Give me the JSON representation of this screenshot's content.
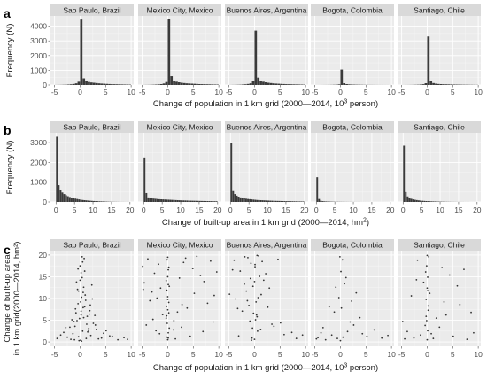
{
  "chart_data": [
    {
      "panel_label": "a",
      "type": "bar",
      "subtype": "histogram-facets",
      "xlabel_prefix": "Change of population in 1 km grid (2000—2014, 10",
      "xlabel_sup": "3",
      "xlabel_suffix": " person)",
      "ylabel": "Frequency (N)",
      "xlim": [
        -5.8,
        10.5
      ],
      "ylim": [
        0,
        4700
      ],
      "xticks": [
        -5,
        0,
        5,
        10
      ],
      "yticks": [
        0,
        1000,
        2000,
        3000,
        4000
      ],
      "bin_width": 0.5,
      "bin_starts": [
        -5.0,
        -4.5,
        -4.0,
        -3.5,
        -3.0,
        -2.5,
        -2.0,
        -1.5,
        -1.0,
        -0.5,
        0.0,
        0.5,
        1.0,
        1.5,
        2.0,
        2.5,
        3.0,
        3.5,
        4.0,
        4.5,
        5.0,
        5.5,
        6.0,
        6.5,
        7.0,
        7.5,
        8.0,
        8.5,
        9.0,
        9.5
      ],
      "series": [
        {
          "name": "Sao Paulo, Brazil",
          "values": [
            5,
            8,
            10,
            15,
            20,
            30,
            45,
            70,
            110,
            220,
            4450,
            450,
            260,
            200,
            170,
            150,
            130,
            110,
            95,
            85,
            75,
            65,
            55,
            50,
            45,
            40,
            35,
            30,
            28,
            25
          ]
        },
        {
          "name": "Mexico City, Mexico",
          "values": [
            5,
            8,
            10,
            15,
            20,
            28,
            40,
            60,
            100,
            200,
            4500,
            600,
            300,
            220,
            180,
            150,
            130,
            110,
            100,
            90,
            80,
            70,
            60,
            55,
            50,
            45,
            40,
            35,
            30,
            28
          ]
        },
        {
          "name": "Buenos Aires, Argentina",
          "values": [
            5,
            8,
            10,
            15,
            20,
            30,
            45,
            70,
            110,
            250,
            3700,
            500,
            280,
            220,
            180,
            150,
            130,
            110,
            95,
            85,
            75,
            65,
            55,
            50,
            45,
            40,
            35,
            30,
            28,
            25
          ]
        },
        {
          "name": "Bogota, Colombia",
          "values": [
            2,
            3,
            4,
            5,
            6,
            8,
            10,
            15,
            20,
            40,
            1050,
            120,
            60,
            40,
            30,
            25,
            20,
            18,
            15,
            12,
            10,
            9,
            8,
            7,
            6,
            5,
            5,
            4,
            4,
            3
          ]
        },
        {
          "name": "Santiago, Chile",
          "values": [
            3,
            5,
            6,
            8,
            10,
            15,
            20,
            30,
            50,
            120,
            3300,
            250,
            130,
            90,
            70,
            60,
            50,
            45,
            40,
            35,
            30,
            28,
            25,
            22,
            20,
            18,
            15,
            14,
            12,
            10
          ]
        }
      ]
    },
    {
      "panel_label": "b",
      "type": "bar",
      "subtype": "histogram-facets",
      "xlabel_prefix": "Change of built-up area in 1 km grid (2000—2014, hm",
      "xlabel_sup": "2",
      "xlabel_suffix": ")",
      "ylabel": "Frequency (N)",
      "xlim": [
        -1.5,
        21
      ],
      "ylim": [
        0,
        3500
      ],
      "xticks": [
        0,
        5,
        10,
        15,
        20
      ],
      "yticks": [
        0,
        1000,
        2000,
        3000
      ],
      "bin_width": 0.5,
      "bin_starts": [
        0.0,
        0.5,
        1.0,
        1.5,
        2.0,
        2.5,
        3.0,
        3.5,
        4.0,
        4.5,
        5.0,
        5.5,
        6.0,
        6.5,
        7.0,
        7.5,
        8.0,
        8.5,
        9.0,
        9.5,
        10.0,
        10.5,
        11.0,
        11.5,
        12.0,
        12.5,
        13.0,
        13.5,
        14.0,
        14.5,
        15.0,
        15.5,
        16.0,
        16.5,
        17.0,
        17.5,
        18.0,
        18.5,
        19.0,
        19.5
      ],
      "series": [
        {
          "name": "Sao Paulo, Brazil",
          "values": [
            3300,
            850,
            600,
            480,
            400,
            340,
            290,
            250,
            220,
            190,
            170,
            150,
            130,
            115,
            100,
            90,
            80,
            70,
            62,
            55,
            48,
            42,
            37,
            32,
            28,
            24,
            20,
            17,
            14,
            12,
            10,
            8,
            7,
            6,
            5,
            4,
            4,
            3,
            3,
            2
          ]
        },
        {
          "name": "Mexico City, Mexico",
          "values": [
            2250,
            450,
            230,
            200,
            180,
            170,
            160,
            150,
            140,
            135,
            130,
            125,
            120,
            115,
            110,
            105,
            100,
            95,
            90,
            85,
            82,
            78,
            75,
            72,
            68,
            65,
            62,
            60,
            58,
            55,
            52,
            50,
            48,
            46,
            44,
            42,
            40,
            38,
            36,
            35
          ]
        },
        {
          "name": "Buenos Aires, Argentina",
          "values": [
            3000,
            550,
            400,
            320,
            270,
            230,
            200,
            180,
            165,
            150,
            140,
            130,
            120,
            110,
            100,
            95,
            90,
            85,
            80,
            75,
            70,
            65,
            62,
            58,
            55,
            52,
            50,
            47,
            45,
            42,
            40,
            38,
            36,
            34,
            32,
            30,
            28,
            26,
            25,
            24
          ]
        },
        {
          "name": "Bogota, Colombia",
          "values": [
            1250,
            150,
            60,
            40,
            30,
            25,
            20,
            18,
            15,
            13,
            12,
            10,
            9,
            8,
            7,
            6,
            6,
            5,
            5,
            4,
            4,
            3,
            3,
            3,
            2,
            2,
            2,
            2,
            2,
            1,
            1,
            1,
            1,
            1,
            1,
            1,
            1,
            1,
            1,
            1
          ]
        },
        {
          "name": "Santiago, Chile",
          "values": [
            2850,
            500,
            280,
            200,
            160,
            130,
            110,
            95,
            80,
            70,
            60,
            52,
            45,
            40,
            35,
            30,
            27,
            24,
            21,
            18,
            16,
            14,
            12,
            10,
            9,
            8,
            7,
            6,
            5,
            4,
            4,
            3,
            3,
            2,
            2,
            2,
            1,
            1,
            1,
            1
          ]
        }
      ]
    },
    {
      "panel_label": "c",
      "type": "scatter",
      "xlabel_prefix": "Change of population in 1 km grid (2000—2014, 10",
      "xlabel_sup": "3",
      "xlabel_suffix": " person)",
      "ylabel_line1": "Change of built-up area",
      "ylabel_line2": "in 1 km grid(2000—2014, hm²)",
      "xlim": [
        -5.8,
        10.5
      ],
      "ylim": [
        -1,
        21
      ],
      "xticks": [
        -5,
        0,
        5,
        10
      ],
      "yticks": [
        0,
        5,
        10,
        15,
        20
      ],
      "series": [
        {
          "name": "Sao Paulo, Brazil",
          "x": [
            0.1,
            -0.3,
            0.5,
            1.2,
            -1.0,
            0.2,
            2.1,
            -0.6,
            0.9,
            1.6,
            -1.8,
            0.3,
            3.0,
            -2.5,
            0.7,
            -0.1,
            1.9,
            4.2,
            -3.2,
            0.4,
            1.1,
            -0.8,
            2.6,
            0.0,
            -1.4,
            5.1,
            0.6,
            -0.4,
            1.4,
            3.6,
            -2.0,
            0.8,
            2.3,
            -0.9,
            6.3,
            0.2,
            -0.2,
            1.0,
            -1.2,
            2.9,
            0.5,
            7.4,
            -3.8,
            1.7,
            0.1,
            -0.5,
            4.6,
            0.9,
            -1.6,
            2.0,
            0.3,
            8.6,
            -0.7,
            1.3,
            -4.5,
            0.6,
            3.2,
            -0.3,
            1.8,
            0.4,
            -2.8,
            5.8,
            0.0,
            2.4,
            -1.1,
            0.7,
            9.3,
            -0.4,
            1.5,
            0.2
          ],
          "y": [
            0.4,
            1.2,
            2.5,
            0.8,
            3.6,
            6.2,
            1.5,
            4.9,
            8.1,
            2.7,
            0.6,
            10.3,
            3.9,
            1.1,
            12.6,
            5.4,
            7.2,
            0.9,
            2.2,
            14.8,
            9.6,
            6.7,
            4.3,
            17.5,
            1.9,
            2.6,
            11.4,
            8.8,
            5.9,
            0.7,
            3.4,
            19.2,
            13.1,
            7.6,
            1.3,
            15.9,
            0.3,
            10.8,
            4.7,
            6.1,
            18.4,
            0.5,
            1.6,
            3.1,
            9.2,
            12.1,
            2.0,
            16.3,
            5.1,
            8.5,
            0.2,
            1.0,
            13.8,
            4.1,
            0.8,
            7.9,
            2.9,
            11.7,
            6.4,
            19.6,
            3.3,
            1.4,
            14.2,
            9.9,
            0.5,
            5.6,
            0.6,
            16.8,
            2.3,
            7.1
          ]
        },
        {
          "name": "Mexico City, Mexico",
          "x": [
            0.0,
            0.1,
            -0.1,
            0.2,
            -0.2,
            0.0,
            0.3,
            -0.3,
            0.1,
            -0.1,
            1.5,
            -1.6,
            2.7,
            -2.9,
            3.8,
            -3.5,
            5.2,
            -4.6,
            6.4,
            0.0,
            0.2,
            -0.2,
            1.1,
            -1.0,
            7.8,
            -4.9,
            2.3,
            -2.1,
            8.9,
            0.1,
            4.4,
            -3.9,
            0.0,
            9.6,
            -0.3,
            3.1,
            -1.4,
            6.9,
            0.2,
            -2.6,
            1.9,
            5.7,
            -0.1,
            -4.2,
            0.0,
            2.8,
            -3.1,
            7.1,
            0.3,
            9.1,
            -1.8,
            0.1,
            4.9,
            -0.2,
            3.5,
            -4.8,
            0.0,
            1.2,
            8.4,
            -2.3
          ],
          "y": [
            0.5,
            2.1,
            4.3,
            6.7,
            8.2,
            10.4,
            12.8,
            14.1,
            16.6,
            18.9,
            0.7,
            1.9,
            3.4,
            5.2,
            7.8,
            9.5,
            11.2,
            13.6,
            15.3,
            19.5,
            17.2,
            11.9,
            2.8,
            6.3,
            8.9,
            17.4,
            14.7,
            10.1,
            4.6,
            13.2,
            1.3,
            19.1,
            7.4,
            16.1,
            5.5,
            18.3,
            12.4,
            2.4,
            9.1,
            15.8,
            6.9,
            19.7,
            1.1,
            3.9,
            15.0,
            8.6,
            11.5,
            13.9,
            3.2,
            10.7,
            17.9,
            0.9,
            16.9,
            6.0,
            19.3,
            12.1,
            9.8,
            4.9,
            18.6,
            2.6
          ]
        },
        {
          "name": "Buenos Aires, Argentina",
          "x": [
            0.0,
            -0.4,
            0.5,
            -1.1,
            1.3,
            -2.0,
            2.2,
            -0.7,
            0.8,
            -3.1,
            3.4,
            -0.2,
            0.3,
            -1.6,
            1.8,
            -4.3,
            4.6,
            -0.5,
            0.6,
            -2.4,
            2.9,
            0.1,
            -0.9,
            5.8,
            -3.7,
            1.0,
            -1.3,
            0.4,
            7.3,
            -4.9,
            0.0,
            1.5,
            -0.6,
            2.6,
            -2.8,
            8.2,
            0.2,
            -1.9,
            3.8,
            -0.3,
            0.7,
            -3.3,
            9.4,
            0.1,
            -0.8,
            1.2,
            -4.0,
            5.1,
            -1.4,
            0.5
          ],
          "y": [
            0.6,
            3.2,
            5.8,
            8.4,
            10.9,
            13.3,
            15.7,
            18.1,
            19.8,
            1.4,
            4.1,
            6.6,
            9.2,
            11.7,
            14.2,
            16.6,
            19.0,
            0.9,
            2.5,
            7.1,
            12.4,
            17.3,
            4.8,
            1.7,
            9.9,
            15.1,
            19.4,
            6.2,
            2.2,
            11.0,
            13.9,
            18.5,
            0.4,
            8.0,
            16.3,
            0.8,
            5.1,
            19.6,
            3.6,
            12.8,
            10.2,
            7.7,
            1.6,
            17.8,
            14.6,
            2.9,
            18.8,
            4.4,
            9.5,
            19.9
          ]
        },
        {
          "name": "Bogota, Colombia",
          "x": [
            0.0,
            0.5,
            -0.6,
            1.4,
            -1.7,
            2.6,
            -2.9,
            3.8,
            -3.8,
            5.2,
            -4.7,
            0.2,
            -0.3,
            1.9,
            -1.2,
            6.6,
            0.8,
            -2.2,
            4.3,
            0.1,
            8.1,
            -0.9,
            2.2,
            -3.4,
            0.4,
            9.3,
            -0.1,
            1.1,
            -4.4,
            3.1
          ],
          "y": [
            0.3,
            1.1,
            0.8,
            2.4,
            1.6,
            3.9,
            0.5,
            5.6,
            2.1,
            1.3,
            0.7,
            7.8,
            10.2,
            4.6,
            6.9,
            2.8,
            13.4,
            8.1,
            1.9,
            16.2,
            0.9,
            12.6,
            9.4,
            3.3,
            18.9,
            1.5,
            19.6,
            14.8,
            1.0,
            11.3
          ]
        },
        {
          "name": "Santiago, Chile",
          "x": [
            0.0,
            0.1,
            -0.1,
            0.2,
            -0.2,
            0.0,
            0.1,
            -0.1,
            0.3,
            -0.3,
            1.2,
            -1.3,
            2.4,
            -2.6,
            3.7,
            -3.9,
            5.1,
            -4.8,
            6.4,
            7.8,
            9.1,
            0.5,
            -0.7,
            1.8,
            -1.9,
            4.4,
            -3.1,
            0.0,
            8.6,
            -4.4,
            2.9,
            0.2,
            -0.4,
            5.9,
            0.8,
            -2.1,
            3.3,
            -0.2,
            7.2,
            0.1
          ],
          "y": [
            0.5,
            2.6,
            4.9,
            7.3,
            9.8,
            12.4,
            14.9,
            17.5,
            19.6,
            16.1,
            0.8,
            1.6,
            3.4,
            0.9,
            6.2,
            2.4,
            1.3,
            4.7,
            8.6,
            0.6,
            2.1,
            11.2,
            13.7,
            5.5,
            18.8,
            15.4,
            10.6,
            19.9,
            6.8,
            0.7,
            17.1,
            8.3,
            3.8,
            12.9,
            1.9,
            14.3,
            9.2,
            5.9,
            16.7,
            11.8
          ]
        }
      ]
    }
  ]
}
